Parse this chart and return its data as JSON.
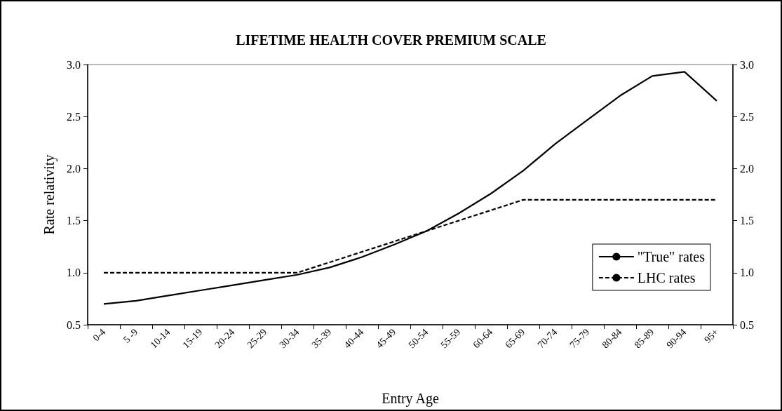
{
  "chart_data": {
    "type": "line",
    "title": "LIFETIME HEALTH COVER PREMIUM SCALE",
    "xlabel": "Entry Age",
    "ylabel": "Rate relativity",
    "categories": [
      "0-4",
      "5 -9",
      "10-14",
      "15-19",
      "20-24",
      "25-29",
      "30-34",
      "35-39",
      "40-44",
      "45-49",
      "50-54",
      "55-59",
      "60-64",
      "65-69",
      "70-74",
      "75-79",
      "80-84",
      "85-89",
      "90-94",
      "95+"
    ],
    "series": [
      {
        "name": "\"True\" rates",
        "color": "#000000",
        "line_style": "solid",
        "values": [
          0.7,
          0.73,
          0.78,
          0.83,
          0.88,
          0.93,
          0.98,
          1.05,
          1.15,
          1.27,
          1.4,
          1.57,
          1.76,
          1.98,
          2.24,
          2.47,
          2.7,
          2.89,
          2.93,
          2.65
        ]
      },
      {
        "name": "LHC rates",
        "color": "#000000",
        "line_style": "dashed",
        "values": [
          1.0,
          1.0,
          1.0,
          1.0,
          1.0,
          1.0,
          1.0,
          1.1,
          1.2,
          1.3,
          1.4,
          1.5,
          1.6,
          1.7,
          1.7,
          1.7,
          1.7,
          1.7,
          1.7,
          1.7
        ]
      }
    ],
    "ylim": [
      0.5,
      3.0
    ],
    "yticks": [
      {
        "value": 0.5,
        "label": "0.5"
      },
      {
        "value": 1,
        "label": "1.0"
      },
      {
        "value": 1.5,
        "label": "1.5"
      },
      {
        "value": 2,
        "label": "2.0"
      },
      {
        "value": 2.5,
        "label": "2.5"
      },
      {
        "value": 3,
        "label": "3.0"
      }
    ],
    "y2lim": [
      0.5,
      3.0
    ],
    "y2ticks": [
      {
        "value": 0.5,
        "label": "0.5"
      },
      {
        "value": 1,
        "label": "1.0"
      },
      {
        "value": 1.5,
        "label": "1.5"
      },
      {
        "value": 2,
        "label": "2.0"
      },
      {
        "value": 2.5,
        "label": "2.5"
      },
      {
        "value": 3,
        "label": "3.0"
      }
    ],
    "grid": false,
    "legend": "bottom right",
    "marker": "none"
  }
}
